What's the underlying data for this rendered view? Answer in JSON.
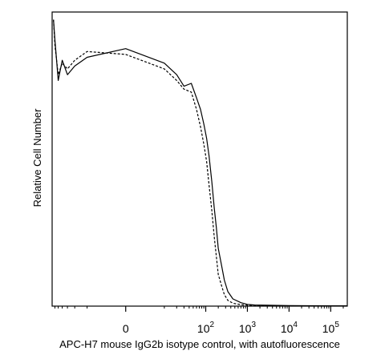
{
  "chart_data": {
    "type": "line",
    "title": "",
    "xlabel": "APC-H7 mouse IgG2b isotype control, with autofluorescence",
    "ylabel": "Relative Cell Number",
    "x_scale": "biexponential",
    "xlim": [
      -70,
      250000
    ],
    "ylim": [
      0,
      100
    ],
    "grid": false,
    "x_ticks": [
      {
        "base": "0",
        "exp": ""
      },
      {
        "base": "10",
        "exp": "2"
      },
      {
        "base": "10",
        "exp": "3"
      },
      {
        "base": "10",
        "exp": "4"
      },
      {
        "base": "10",
        "exp": "5"
      }
    ],
    "x_tick_values": [
      0,
      100,
      1000,
      10000,
      100000
    ],
    "series": [
      {
        "style": "solid",
        "color": "#000000",
        "x": [
          -65,
          -60,
          -50,
          -40,
          -30,
          -20,
          -10,
          0,
          10,
          20,
          30,
          45,
          60,
          75,
          90,
          105,
          120,
          140,
          160,
          180,
          200,
          240,
          280,
          340,
          450,
          700,
          1000,
          1500,
          3000,
          10000,
          100000,
          250000
        ],
        "y": [
          99,
          92,
          78,
          85,
          80,
          83,
          86,
          89,
          84,
          80,
          76,
          77,
          72,
          68,
          63,
          58,
          52,
          43,
          34,
          27,
          20,
          14,
          9,
          5,
          2.5,
          1.2,
          0.6,
          0.4,
          0.3,
          0.2,
          0.1,
          0.1
        ]
      },
      {
        "style": "dashed",
        "color": "#000000",
        "x": [
          -65,
          -60,
          -50,
          -40,
          -30,
          -20,
          -10,
          0,
          10,
          20,
          30,
          45,
          60,
          75,
          90,
          105,
          120,
          140,
          160,
          180,
          200,
          240,
          280,
          340,
          450,
          700,
          1000,
          1500,
          3000,
          10000,
          100000,
          250000
        ],
        "y": [
          99,
          90,
          80,
          84,
          82,
          85,
          88,
          87,
          82,
          78,
          75,
          74,
          68,
          62,
          56,
          50,
          42,
          33,
          24,
          17,
          11,
          7,
          4,
          2,
          1,
          0.5,
          0.3,
          0.2,
          0.1,
          0.1,
          0.1,
          0.1
        ]
      }
    ]
  }
}
